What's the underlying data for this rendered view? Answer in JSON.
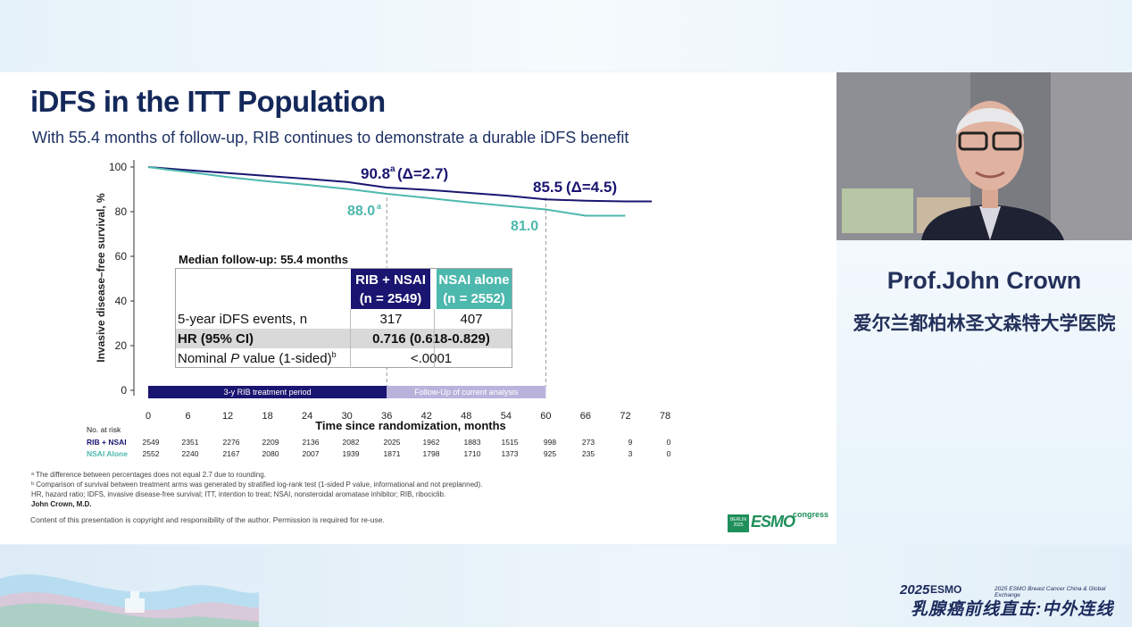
{
  "slide": {
    "title": "iDFS in the ITT Population",
    "subtitle": "With 55.4 months of follow-up, RIB continues to demonstrate a durable iDFS benefit",
    "median_followup": "Median follow-up: 55.4 months",
    "table": {
      "col1_line1": "RIB + NSAI",
      "col1_line2": "(n = 2549)",
      "col2_line1": "NSAI alone",
      "col2_line2": "(n = 2552)",
      "row1_label": "5-year iDFS events, n",
      "row1_v1": "317",
      "row1_v2": "407",
      "row2_label": "HR (95% CI)",
      "row2_value": "0.716 (0.618-0.829)",
      "row3_label_a": "Nominal ",
      "row3_label_p": "P",
      "row3_label_b": " value (1-sided)",
      "row3_label_sup": "b",
      "row3_value": "<.0001"
    },
    "footnotes": {
      "a": "ᵃ The difference between percentages does not equal 2.7 due to rounding.",
      "b": "ᵇ Comparison of survival between treatment arms was generated by stratified log-rank test (1-sided P value, informational and not preplanned).",
      "abbrev": "HR, hazard ratio; IDFS, invasive disease-free survival; ITT, intention to treat; NSAI, nonsteroidal aromatase inhibitor; RIB, ribociclib.",
      "author": "John Crown, M.D."
    },
    "copyright": "Content of this presentation is copyright and responsibility of the author. Permission is required for re-use.",
    "esmo_logo": {
      "box": "BERLIN 2025",
      "word": "ESMO",
      "congress": "congress"
    }
  },
  "chart_data": {
    "type": "line",
    "xlabel": "Time since randomization, months",
    "ylabel": "Invasive disease–free survival, %",
    "xlim": [
      0,
      78
    ],
    "ylim": [
      0,
      100
    ],
    "x_ticks": [
      0,
      6,
      12,
      18,
      24,
      30,
      36,
      42,
      48,
      54,
      60,
      66,
      72,
      78
    ],
    "y_ticks": [
      0,
      20,
      40,
      60,
      80,
      100
    ],
    "series": [
      {
        "name": "RIB + NSAI",
        "color": "#1a1570",
        "x": [
          0,
          3,
          6,
          12,
          18,
          24,
          30,
          36,
          42,
          48,
          54,
          60,
          66,
          72,
          76
        ],
        "y": [
          100,
          99.3,
          98.6,
          97.3,
          96,
          94.7,
          93.3,
          90.8,
          89.8,
          88.5,
          87.2,
          85.5,
          84.9,
          84.6,
          84.6
        ]
      },
      {
        "name": "NSAI Alone",
        "color": "#4db8ad",
        "x": [
          0,
          3,
          6,
          12,
          18,
          24,
          30,
          36,
          42,
          48,
          54,
          60,
          66,
          72
        ],
        "y": [
          100,
          98.8,
          97.8,
          95.5,
          93.6,
          92,
          90.2,
          88.0,
          86.2,
          84.3,
          82.6,
          81.0,
          78.2,
          78.2
        ]
      }
    ],
    "annotations": {
      "rib36": "90.8",
      "rib36_sup": "a",
      "rib36_delta": "(Δ=2.7)",
      "rib60": "85.5",
      "rib60_delta": "(Δ=4.5)",
      "nsai36": "88.0",
      "nsai36_sup": "a",
      "nsai60": "81.0"
    },
    "periods": [
      {
        "label": "3-y RIB treatment period",
        "from": 0,
        "to": 36,
        "color": "#1a1570"
      },
      {
        "label": "Follow-Up of current analysis",
        "from": 36,
        "to": 60,
        "color": "#b9b3dc"
      }
    ],
    "at_risk": {
      "title": "No. at risk",
      "rows": [
        {
          "name": "RIB + NSAI",
          "color": "#1a1570",
          "values": [
            "2549",
            "2351",
            "2276",
            "2209",
            "2136",
            "2082",
            "2025",
            "1962",
            "1883",
            "1515",
            "998",
            "273",
            "9",
            "0"
          ]
        },
        {
          "name": "NSAI Alone",
          "color": "#4db8ad",
          "values": [
            "2552",
            "2240",
            "2167",
            "2080",
            "2007",
            "1939",
            "1871",
            "1798",
            "1710",
            "1373",
            "925",
            "235",
            "3",
            "0"
          ]
        }
      ]
    }
  },
  "speaker": {
    "name": "Prof.John Crown",
    "affiliation": "爱尔兰都柏林圣文森特大学医院"
  },
  "event": {
    "year": "2025",
    "esmo": "ESMO",
    "subtitle": "2025 ESMO Breast Cancer China & Global Exchange",
    "chinese": "乳腺癌前线直击:中外连线"
  }
}
